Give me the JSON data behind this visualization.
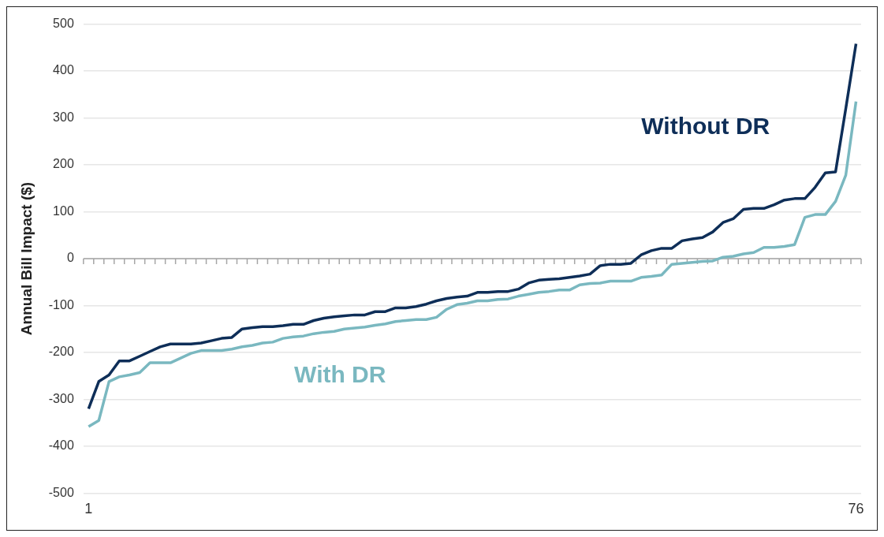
{
  "chart_data": {
    "type": "line",
    "ylabel": "Annual Bill Impact ($)",
    "categories": [
      "1",
      null,
      null,
      null,
      null,
      null,
      null,
      null,
      null,
      null,
      null,
      null,
      null,
      null,
      null,
      null,
      null,
      null,
      null,
      null,
      null,
      null,
      null,
      null,
      null,
      null,
      null,
      null,
      null,
      null,
      null,
      null,
      null,
      null,
      null,
      null,
      null,
      null,
      null,
      null,
      null,
      null,
      null,
      null,
      null,
      null,
      null,
      null,
      null,
      null,
      null,
      null,
      null,
      null,
      null,
      null,
      null,
      null,
      null,
      null,
      null,
      null,
      null,
      null,
      null,
      null,
      null,
      null,
      null,
      null,
      null,
      null,
      null,
      null,
      null,
      "76"
    ],
    "series": [
      {
        "name": "Without DR",
        "color": "#0e2e58",
        "values": [
          -320,
          -262,
          -248,
          -218,
          -218,
          -208,
          -198,
          -188,
          -182,
          -182,
          -182,
          -180,
          -175,
          -170,
          -168,
          -150,
          -147,
          -145,
          -145,
          -143,
          -140,
          -140,
          -132,
          -127,
          -124,
          -122,
          -120,
          -120,
          -113,
          -113,
          -105,
          -105,
          -102,
          -97,
          -90,
          -85,
          -82,
          -80,
          -72,
          -72,
          -70,
          -70,
          -65,
          -52,
          -46,
          -44,
          -43,
          -40,
          -37,
          -33,
          -15,
          -12,
          -12,
          -10,
          8,
          17,
          22,
          22,
          38,
          42,
          45,
          57,
          77,
          85,
          105,
          107,
          107,
          115,
          125,
          128,
          128,
          152,
          183,
          185,
          320,
          458
        ]
      },
      {
        "name": "With DR",
        "color": "#7ab8c0",
        "values": [
          -358,
          -345,
          -262,
          -252,
          -248,
          -243,
          -222,
          -222,
          -222,
          -212,
          -202,
          -196,
          -196,
          -196,
          -193,
          -188,
          -185,
          -180,
          -178,
          -170,
          -167,
          -165,
          -160,
          -157,
          -155,
          -150,
          -148,
          -146,
          -142,
          -139,
          -134,
          -132,
          -130,
          -130,
          -125,
          -108,
          -98,
          -95,
          -90,
          -90,
          -87,
          -86,
          -80,
          -76,
          -72,
          -70,
          -67,
          -67,
          -56,
          -53,
          -52,
          -48,
          -48,
          -48,
          -40,
          -38,
          -35,
          -12,
          -10,
          -8,
          -6,
          -5,
          3,
          5,
          10,
          13,
          24,
          24,
          26,
          30,
          88,
          94,
          94,
          122,
          178,
          335
        ]
      }
    ],
    "ylim": [
      -500,
      500
    ],
    "yticks": [
      -500,
      -400,
      -300,
      -200,
      -100,
      0,
      100,
      200,
      300,
      400,
      500
    ],
    "grid": "y",
    "legend": false,
    "marker": "none",
    "line_style": "solid"
  }
}
